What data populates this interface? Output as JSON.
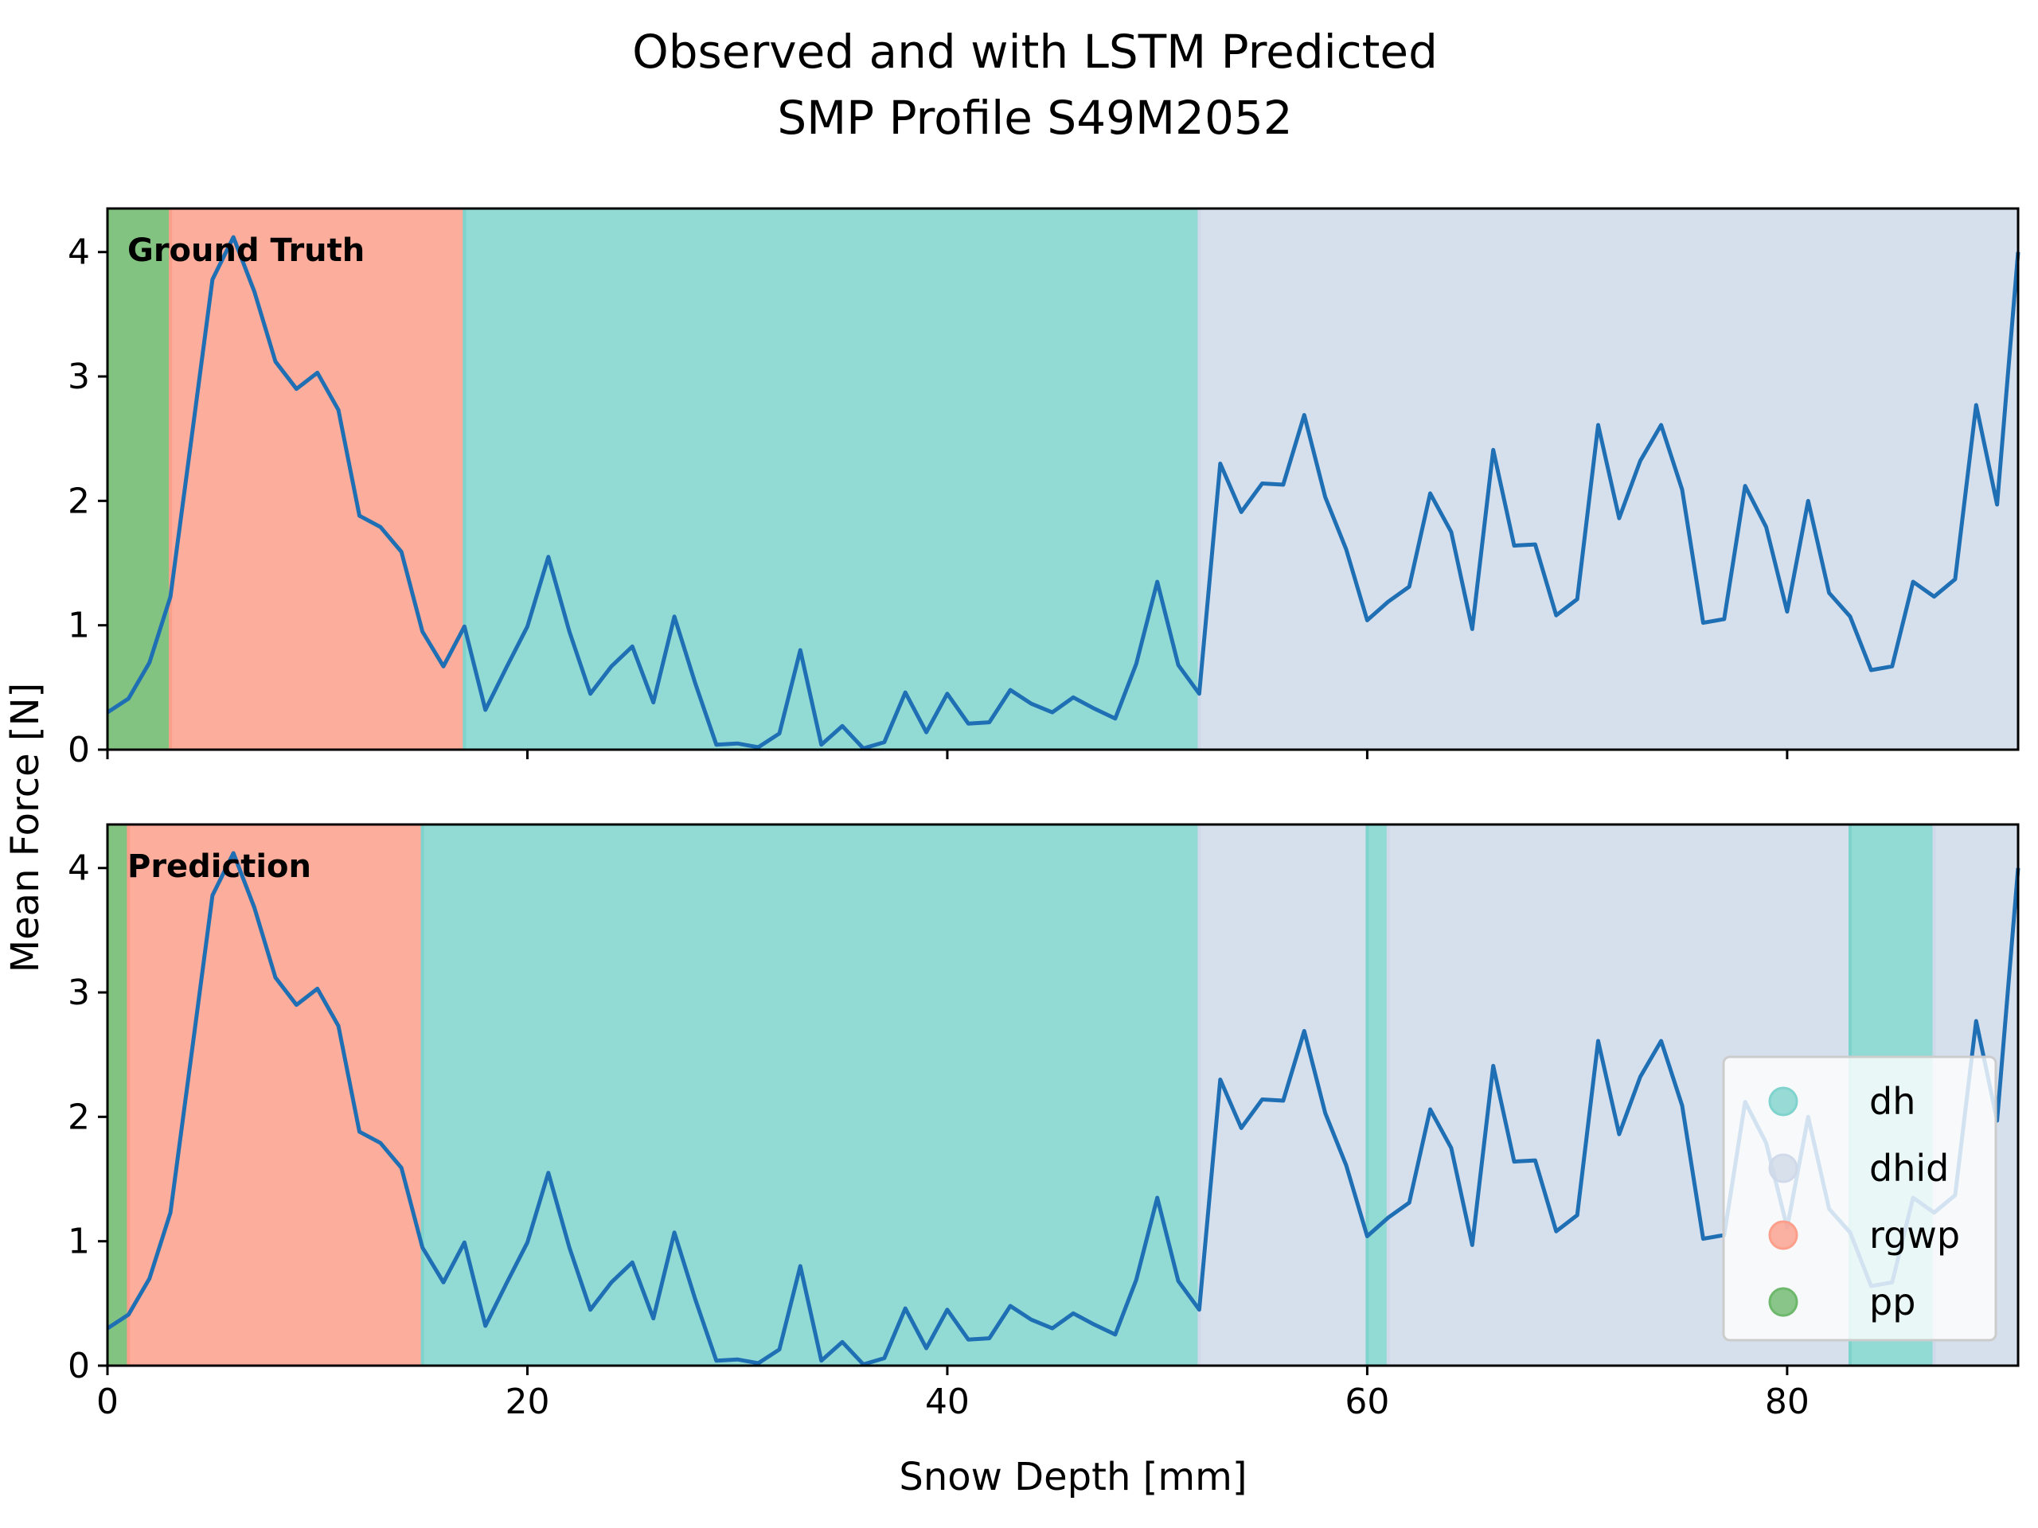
{
  "chart_data": {
    "type": "line",
    "title": "Observed and with LSTM Predicted",
    "subtitle": "SMP Profile S49M2052",
    "xlabel": "Snow Depth [mm]",
    "ylabel": "Mean Force [N]",
    "xlim": [
      0,
      91
    ],
    "ylim": [
      0,
      4.35
    ],
    "x_ticks": [
      0,
      20,
      40,
      60,
      80
    ],
    "y_ticks": [
      0,
      1,
      2,
      3,
      4
    ],
    "grid": false,
    "legend": {
      "position": "lower-right",
      "entries": [
        "dh",
        "dhid",
        "rgwp",
        "pp"
      ]
    },
    "classes": {
      "dh": "#7fd3cd",
      "dhid": "#cfd9e9",
      "rgwp": "#fb9f8b",
      "pp": "#6db86b"
    },
    "line_color": "#1f6fb4",
    "series": [
      {
        "x": [
          0,
          1,
          2,
          3,
          4,
          5,
          6,
          7,
          8,
          9,
          10,
          11,
          12,
          13,
          14,
          15,
          16,
          17,
          18,
          19,
          20,
          21,
          22,
          23,
          24,
          25,
          26,
          27,
          28,
          29,
          30,
          31,
          32,
          33,
          34,
          35,
          36,
          37,
          38,
          39,
          40,
          41,
          42,
          43,
          44,
          45,
          46,
          47,
          48,
          49,
          50,
          51,
          52,
          53,
          54,
          55,
          56,
          57,
          58,
          59,
          60,
          61,
          62,
          63,
          64,
          65,
          66,
          67,
          68,
          69,
          70,
          71,
          72,
          73,
          74,
          75,
          76,
          77,
          78,
          79,
          80,
          81,
          82,
          83,
          84,
          85,
          86,
          87,
          88,
          89,
          90,
          91
        ],
        "values": [
          0.3,
          0.41,
          0.7,
          1.23,
          2.5,
          3.78,
          4.12,
          3.68,
          3.12,
          2.9,
          3.03,
          2.73,
          1.88,
          1.79,
          1.59,
          0.95,
          0.67,
          0.99,
          0.32,
          0.66,
          0.99,
          1.55,
          0.95,
          0.45,
          0.67,
          0.83,
          0.38,
          1.07,
          0.53,
          0.04,
          0.05,
          0.02,
          0.13,
          0.8,
          0.04,
          0.19,
          0.01,
          0.06,
          0.46,
          0.14,
          0.45,
          0.21,
          0.22,
          0.48,
          0.37,
          0.3,
          0.42,
          0.33,
          0.25,
          0.69,
          1.35,
          0.68,
          0.45,
          2.3,
          1.91,
          2.14,
          2.13,
          2.69,
          2.03,
          1.61,
          1.04,
          1.19,
          1.31,
          2.06,
          1.75,
          0.97,
          2.41,
          1.64,
          1.65,
          1.08,
          1.21,
          2.61,
          1.86,
          2.32,
          2.61,
          2.09,
          1.02,
          1.05,
          2.12,
          1.79,
          1.11,
          2.0,
          1.26,
          1.07,
          0.64,
          0.67,
          1.35,
          1.23,
          1.37,
          2.77,
          1.97,
          4.0
        ]
      }
    ],
    "panels": [
      {
        "label": "Ground Truth",
        "segments": [
          {
            "from": 0,
            "to": 3,
            "class": "pp"
          },
          {
            "from": 3,
            "to": 17,
            "class": "rgwp"
          },
          {
            "from": 17,
            "to": 52,
            "class": "dh"
          },
          {
            "from": 52,
            "to": 91,
            "class": "dhid"
          }
        ]
      },
      {
        "label": "Prediction",
        "segments": [
          {
            "from": 0,
            "to": 1,
            "class": "pp"
          },
          {
            "from": 1,
            "to": 15,
            "class": "rgwp"
          },
          {
            "from": 15,
            "to": 52,
            "class": "dh"
          },
          {
            "from": 52,
            "to": 60,
            "class": "dhid"
          },
          {
            "from": 60,
            "to": 61,
            "class": "dh"
          },
          {
            "from": 61,
            "to": 83,
            "class": "dhid"
          },
          {
            "from": 83,
            "to": 87,
            "class": "dh"
          },
          {
            "from": 87,
            "to": 91,
            "class": "dhid"
          }
        ]
      }
    ]
  }
}
